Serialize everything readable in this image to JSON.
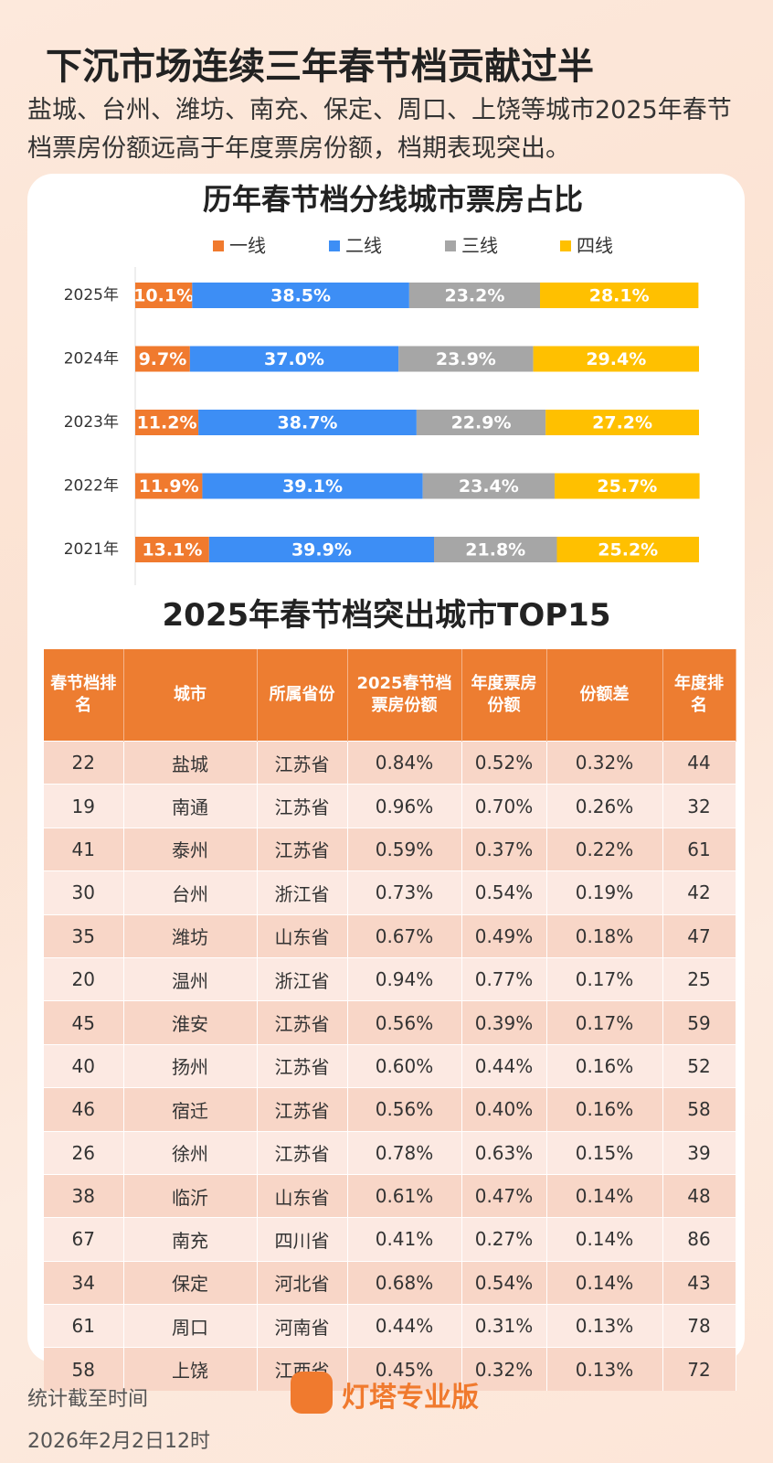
{
  "header": {
    "title": "下沉市场连续三年春节档贡献过半",
    "subtitle": "盐城、台州、潍坊、南充、保定、周口、上饶等城市2025年春节档票房份额远高于年度票房份额，档期表现突出。"
  },
  "chart_data": {
    "type": "stacked-bar-horizontal",
    "title": "历年春节档分线城市票房占比",
    "categories": [
      "2025年",
      "2024年",
      "2023年",
      "2022年",
      "2021年"
    ],
    "xlim": [
      0,
      100
    ],
    "series": [
      {
        "name": "一线",
        "color": "#f07a2e",
        "values": [
          10.1,
          9.7,
          11.2,
          11.9,
          13.1
        ],
        "value_labels": [
          "10.1%",
          "9.7%",
          "11.2%",
          "11.9%",
          "13.1%"
        ]
      },
      {
        "name": "二线",
        "color": "#3d8ef5",
        "values": [
          38.5,
          37.0,
          38.7,
          39.1,
          39.9
        ],
        "value_labels": [
          "38.5%",
          "37.0%",
          "38.7%",
          "39.1%",
          "39.9%"
        ]
      },
      {
        "name": "三线",
        "color": "#a6a6a6",
        "values": [
          23.2,
          23.9,
          22.9,
          23.4,
          21.8
        ],
        "value_labels": [
          "23.2%",
          "23.9%",
          "22.9%",
          "23.4%",
          "21.8%"
        ]
      },
      {
        "name": "四线",
        "color": "#ffc000",
        "values": [
          28.1,
          29.4,
          27.2,
          25.7,
          25.2
        ],
        "value_labels": [
          "28.1%",
          "29.4%",
          "27.2%",
          "25.7%",
          "25.2%"
        ]
      }
    ]
  },
  "table": {
    "title": "2025年春节档突出城市TOP15",
    "header": [
      "春节档排名",
      "城市",
      "所属省份",
      "2025春节档票房份额",
      "年度票房份额",
      "份额差",
      "年度排名"
    ],
    "rows": [
      [
        "22",
        "盐城",
        "江苏省",
        "0.84%",
        "0.52%",
        "0.32%",
        "44"
      ],
      [
        "19",
        "南通",
        "江苏省",
        "0.96%",
        "0.70%",
        "0.26%",
        "32"
      ],
      [
        "41",
        "泰州",
        "江苏省",
        "0.59%",
        "0.37%",
        "0.22%",
        "61"
      ],
      [
        "30",
        "台州",
        "浙江省",
        "0.73%",
        "0.54%",
        "0.19%",
        "42"
      ],
      [
        "35",
        "潍坊",
        "山东省",
        "0.67%",
        "0.49%",
        "0.18%",
        "47"
      ],
      [
        "20",
        "温州",
        "浙江省",
        "0.94%",
        "0.77%",
        "0.17%",
        "25"
      ],
      [
        "45",
        "淮安",
        "江苏省",
        "0.56%",
        "0.39%",
        "0.17%",
        "59"
      ],
      [
        "40",
        "扬州",
        "江苏省",
        "0.60%",
        "0.44%",
        "0.16%",
        "52"
      ],
      [
        "46",
        "宿迁",
        "江苏省",
        "0.56%",
        "0.40%",
        "0.16%",
        "58"
      ],
      [
        "26",
        "徐州",
        "江苏省",
        "0.78%",
        "0.63%",
        "0.15%",
        "39"
      ],
      [
        "38",
        "临沂",
        "山东省",
        "0.61%",
        "0.47%",
        "0.14%",
        "48"
      ],
      [
        "67",
        "南充",
        "四川省",
        "0.41%",
        "0.27%",
        "0.14%",
        "86"
      ],
      [
        "34",
        "保定",
        "河北省",
        "0.68%",
        "0.54%",
        "0.14%",
        "43"
      ],
      [
        "61",
        "周口",
        "河南省",
        "0.44%",
        "0.31%",
        "0.13%",
        "78"
      ],
      [
        "58",
        "上饶",
        "江西省",
        "0.45%",
        "0.32%",
        "0.13%",
        "72"
      ]
    ]
  },
  "footer": {
    "note": "统计截至时间",
    "date": "2026年2月2日12时",
    "brand": "灯塔专业版"
  }
}
